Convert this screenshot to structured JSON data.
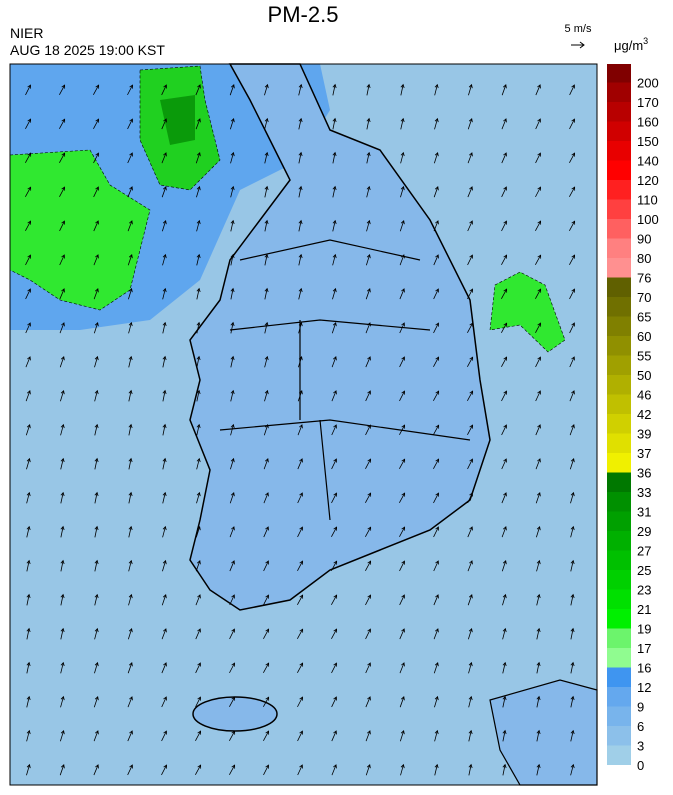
{
  "header": {
    "title": "PM-2.5",
    "agency": "NIER",
    "timestamp": "AUG 18 2025 19:00 KST",
    "wind_scale": "5 m/s"
  },
  "colorbar": {
    "unit": "μg/m",
    "unit_power": "3",
    "labels": [
      0,
      3,
      6,
      9,
      12,
      16,
      17,
      19,
      21,
      23,
      25,
      27,
      29,
      31,
      33,
      36,
      37,
      39,
      42,
      46,
      50,
      55,
      60,
      65,
      70,
      76,
      80,
      90,
      100,
      110,
      120,
      140,
      150,
      160,
      170,
      200
    ],
    "colors": [
      "#a0cfe8",
      "#8cc0ea",
      "#78b4ec",
      "#64a8ee",
      "#3f95f0",
      "#90fc90",
      "#6cf46c",
      "#00f000",
      "#00e000",
      "#00d000",
      "#00c000",
      "#00b000",
      "#00a000",
      "#009000",
      "#007800",
      "#f0f000",
      "#e0e000",
      "#d0d000",
      "#c0c000",
      "#b0b000",
      "#a0a000",
      "#909000",
      "#808000",
      "#707000",
      "#606000",
      "#ff9090",
      "#ff8080",
      "#ff6060",
      "#ff4040",
      "#ff2020",
      "#ff0000",
      "#e80000",
      "#d00000",
      "#b80000",
      "#a00000",
      "#800000"
    ]
  }
}
